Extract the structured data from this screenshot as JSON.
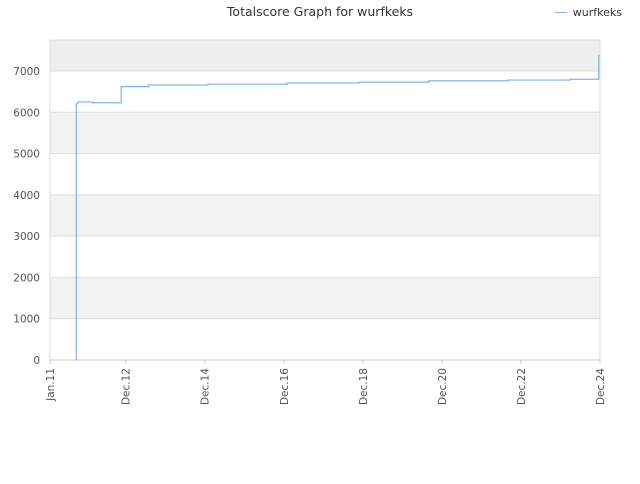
{
  "chart_data": {
    "type": "line",
    "title": "Totalscore Graph for wurfkeks",
    "xlabel": "",
    "ylabel": "",
    "ylim": [
      0,
      7750
    ],
    "yticks": [
      0,
      1000,
      2000,
      3000,
      4000,
      5000,
      6000,
      7000
    ],
    "xlim": [
      "2011-01-01",
      "2024-12-01"
    ],
    "xticks": [
      {
        "date": "2011-01-01",
        "label": "Jan.11"
      },
      {
        "date": "2012-12-01",
        "label": "Dec.12"
      },
      {
        "date": "2014-12-01",
        "label": "Dec.14"
      },
      {
        "date": "2016-12-01",
        "label": "Dec.16"
      },
      {
        "date": "2018-12-01",
        "label": "Dec.18"
      },
      {
        "date": "2020-12-01",
        "label": "Dec.20"
      },
      {
        "date": "2022-12-01",
        "label": "Dec.22"
      },
      {
        "date": "2024-12-01",
        "label": "Dec.24"
      }
    ],
    "grid": true,
    "legend_position": "top-right",
    "series": [
      {
        "name": "wurfkeks",
        "color": "#7cb5ec",
        "step": true,
        "points": [
          {
            "x": "2011-09-01",
            "y": 0
          },
          {
            "x": "2011-09-01",
            "y": 6200
          },
          {
            "x": "2011-09-15",
            "y": 6250
          },
          {
            "x": "2012-02-01",
            "y": 6230
          },
          {
            "x": "2012-10-20",
            "y": 6230
          },
          {
            "x": "2012-10-20",
            "y": 6620
          },
          {
            "x": "2013-07-01",
            "y": 6660
          },
          {
            "x": "2015-01-01",
            "y": 6680
          },
          {
            "x": "2017-01-01",
            "y": 6710
          },
          {
            "x": "2018-11-01",
            "y": 6730
          },
          {
            "x": "2020-08-01",
            "y": 6760
          },
          {
            "x": "2022-08-01",
            "y": 6780
          },
          {
            "x": "2024-03-01",
            "y": 6800
          },
          {
            "x": "2024-11-15",
            "y": 6810
          },
          {
            "x": "2024-11-20",
            "y": 7380
          }
        ]
      }
    ]
  }
}
